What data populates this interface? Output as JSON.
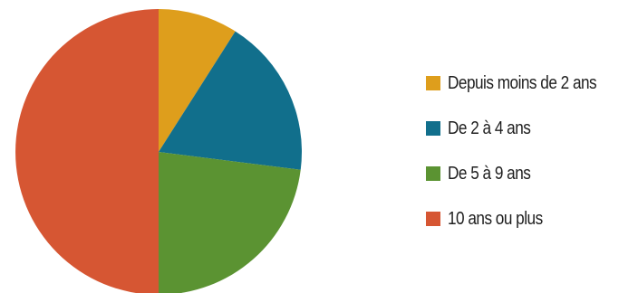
{
  "chart_data": {
    "type": "pie",
    "start_angle": "12 o'clock",
    "direction": "clockwise",
    "legend_position": "right",
    "slices": [
      {
        "label": "Depuis moins de 2 ans",
        "value": 9,
        "color": "#DE9E1C"
      },
      {
        "label": "De 2 à 4 ans",
        "value": 18,
        "color": "#116F8C"
      },
      {
        "label": "De 5 à 9 ans",
        "value": 23,
        "color": "#5B9332"
      },
      {
        "label": "10 ans ou plus",
        "value": 50,
        "color": "#D65633"
      }
    ]
  }
}
